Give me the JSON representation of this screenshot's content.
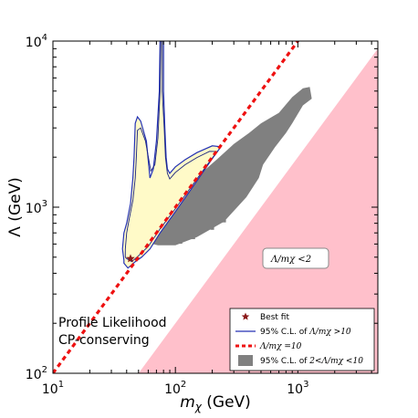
{
  "chart_data": {
    "type": "scatter",
    "xlabel_base": "m",
    "xlabel_sub": "χ",
    "xlabel_unit": " (GeV)",
    "ylabel": "Λ (GeV)",
    "xscale": "log",
    "yscale": "log",
    "xlim": [
      10,
      4500
    ],
    "ylim": [
      100,
      10000
    ],
    "x_ticks": [
      {
        "value": 10,
        "base": "10",
        "exp": "1"
      },
      {
        "value": 100,
        "base": "10",
        "exp": "2"
      },
      {
        "value": 1000,
        "base": "10",
        "exp": "3"
      }
    ],
    "y_ticks": [
      {
        "value": 100,
        "base": "10",
        "exp": "2"
      },
      {
        "value": 1000,
        "base": "10",
        "exp": "3"
      },
      {
        "value": 10000,
        "base": "10",
        "exp": "4"
      }
    ],
    "annotations": {
      "line1": "Profile Likelihood",
      "line2": "CP-conserving",
      "region_note": "Λ/mχ <2"
    },
    "best_fit": {
      "x": 43,
      "y": 490
    },
    "reference_line": {
      "ratio": 10,
      "x": [
        10,
        4500
      ]
    },
    "excluded_region": {
      "color": "#ffc0cb",
      "polygon": [
        [
          50,
          100
        ],
        [
          4500,
          9000
        ],
        [
          4500,
          100
        ]
      ]
    },
    "credible_region_band": {
      "color": "#808080",
      "polygon": [
        [
          60,
          610
        ],
        [
          72,
          590
        ],
        [
          100,
          590
        ],
        [
          150,
          660
        ],
        [
          250,
          820
        ],
        [
          380,
          1150
        ],
        [
          480,
          1500
        ],
        [
          520,
          1800
        ],
        [
          650,
          2300
        ],
        [
          800,
          2800
        ],
        [
          900,
          3200
        ],
        [
          1100,
          4100
        ],
        [
          1300,
          4500
        ],
        [
          1250,
          5300
        ],
        [
          1100,
          5200
        ],
        [
          900,
          4600
        ],
        [
          700,
          3700
        ],
        [
          500,
          3200
        ],
        [
          400,
          2800
        ],
        [
          300,
          2400
        ],
        [
          220,
          1950
        ],
        [
          170,
          1650
        ],
        [
          120,
          1250
        ],
        [
          90,
          1000
        ],
        [
          70,
          780
        ]
      ]
    },
    "contour_outer": {
      "color": "#2432b4",
      "fill": "#fffac8",
      "points": [
        [
          38,
          460
        ],
        [
          41,
          430
        ],
        [
          47,
          470
        ],
        [
          53,
          500
        ],
        [
          62,
          560
        ],
        [
          75,
          700
        ],
        [
          100,
          940
        ],
        [
          150,
          1440
        ],
        [
          200,
          1960
        ],
        [
          235,
          2310
        ],
        [
          200,
          2340
        ],
        [
          150,
          2130
        ],
        [
          120,
          1930
        ],
        [
          100,
          1750
        ],
        [
          90,
          1600
        ],
        [
          86,
          1700
        ],
        [
          84,
          2000
        ],
        [
          82,
          3000
        ],
        [
          80,
          5000
        ],
        [
          80,
          10000
        ],
        [
          75,
          10000
        ],
        [
          74,
          5000
        ],
        [
          70,
          2500
        ],
        [
          66,
          1700
        ],
        [
          62,
          1500
        ],
        [
          58,
          2500
        ],
        [
          52,
          3300
        ],
        [
          49,
          3500
        ],
        [
          47,
          3200
        ],
        [
          46,
          2000
        ],
        [
          45,
          1500
        ],
        [
          43,
          1050
        ],
        [
          40,
          800
        ],
        [
          38,
          700
        ],
        [
          37,
          560
        ],
        [
          38,
          480
        ]
      ]
    },
    "contour_inner": {
      "color": "#1a237e",
      "points": [
        [
          40,
          490
        ],
        [
          44,
          470
        ],
        [
          50,
          510
        ],
        [
          60,
          580
        ],
        [
          75,
          740
        ],
        [
          100,
          980
        ],
        [
          150,
          1480
        ],
        [
          190,
          1880
        ],
        [
          220,
          2160
        ],
        [
          190,
          2170
        ],
        [
          150,
          1990
        ],
        [
          120,
          1800
        ],
        [
          100,
          1620
        ],
        [
          90,
          1480
        ],
        [
          86,
          1600
        ],
        [
          83,
          2000
        ],
        [
          81,
          3000
        ],
        [
          78,
          5000
        ],
        [
          78,
          10000
        ],
        [
          76,
          10000
        ],
        [
          75,
          5000
        ],
        [
          72,
          2600
        ],
        [
          68,
          1800
        ],
        [
          63,
          1650
        ],
        [
          57,
          2500
        ],
        [
          52,
          3000
        ],
        [
          49,
          2900
        ],
        [
          48,
          2000
        ],
        [
          47,
          1500
        ],
        [
          45,
          1100
        ],
        [
          42,
          850
        ],
        [
          40,
          700
        ],
        [
          39,
          560
        ],
        [
          39,
          500
        ]
      ]
    },
    "legend": {
      "placement": "lower-right",
      "items": [
        {
          "symbol": "star",
          "color": "#8b1a1a",
          "label": "Best fit"
        },
        {
          "symbol": "line",
          "color": "#2432b4",
          "label": "95% C.L. of ",
          "math": "Λ/mχ >10"
        },
        {
          "symbol": "dashed",
          "color": "#ee1111",
          "label": "",
          "math": "Λ/mχ =10"
        },
        {
          "symbol": "patch",
          "color": "#808080",
          "label": "95% C.L. of ",
          "math": "2<Λ/mχ <10"
        }
      ]
    }
  }
}
